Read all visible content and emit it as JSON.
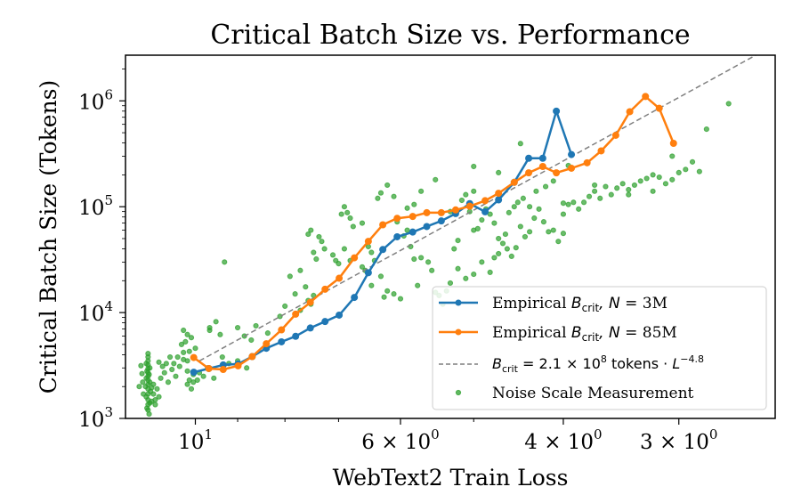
{
  "chart_data": {
    "type": "scatter",
    "title": "Critical Batch Size vs. Performance",
    "xlabel": "WebText2 Train Loss",
    "ylabel": "Critical Batch Size (Tokens)",
    "xscale": "log",
    "x_inverted": true,
    "yscale": "log",
    "xlim": [
      11.9,
      2.36
    ],
    "ylim": [
      1000,
      2700000
    ],
    "grid": false,
    "legend_position": "bottom-right",
    "x_ticks": [
      {
        "value": 10,
        "label_base": "10",
        "label_exp": "1",
        "label_mult": ""
      },
      {
        "value": 6,
        "label_base": "10",
        "label_exp": "0",
        "label_mult": "6 × "
      },
      {
        "value": 4,
        "label_base": "10",
        "label_exp": "0",
        "label_mult": "4 × "
      },
      {
        "value": 3,
        "label_base": "10",
        "label_exp": "0",
        "label_mult": "3 × "
      }
    ],
    "x_minor_ticks": [
      9,
      8,
      7,
      5
    ],
    "y_ticks": [
      {
        "value": 1000,
        "label_base": "10",
        "label_exp": "3"
      },
      {
        "value": 10000,
        "label_base": "10",
        "label_exp": "4"
      },
      {
        "value": 100000,
        "label_base": "10",
        "label_exp": "5"
      },
      {
        "value": 1000000,
        "label_base": "10",
        "label_exp": "6"
      }
    ],
    "series": [
      {
        "name": "Empirical B_crit, N = 3M",
        "legend": {
          "prefix": "Empirical ",
          "math_main": "B",
          "math_sub": "crit",
          "suffix_math": ", N",
          "suffix": " = 3M"
        },
        "kind": "line-marker",
        "color": "#1f77b4",
        "x": [
          10.04,
          9.67,
          9.33,
          8.99,
          8.68,
          8.38,
          8.07,
          7.79,
          7.51,
          7.24,
          6.99,
          6.73,
          6.5,
          6.27,
          6.05,
          5.82,
          5.62,
          5.42,
          5.23,
          5.05,
          4.86,
          4.7,
          4.52,
          4.36,
          4.21,
          4.07,
          3.92
        ],
        "y": [
          2730,
          2960,
          3200,
          3270,
          3840,
          4600,
          5290,
          5970,
          7150,
          8230,
          9460,
          13900,
          23800,
          39400,
          52000,
          57600,
          65000,
          73400,
          86100,
          107000,
          89500,
          116000,
          170000,
          287000,
          287000,
          800000,
          311000
        ]
      },
      {
        "name": "Empirical B_crit, N = 85M",
        "legend": {
          "prefix": "Empirical ",
          "math_main": "B",
          "math_sub": "crit",
          "suffix_math": ", N",
          "suffix": " = 85M"
        },
        "kind": "line-marker",
        "color": "#ff7f0e",
        "x": [
          10.04,
          9.67,
          9.33,
          8.99,
          8.68,
          8.38,
          8.07,
          7.79,
          7.51,
          7.24,
          6.99,
          6.73,
          6.5,
          6.27,
          6.05,
          5.82,
          5.62,
          5.42,
          5.23,
          5.05,
          4.86,
          4.7,
          4.52,
          4.36,
          4.21,
          4.07,
          3.92,
          3.77,
          3.64,
          3.51,
          3.39,
          3.26,
          3.15,
          3.04
        ],
        "y": [
          3760,
          2960,
          2900,
          3140,
          3840,
          5080,
          6860,
          9660,
          12500,
          16600,
          21100,
          32900,
          47100,
          67500,
          77700,
          80900,
          87800,
          87800,
          93300,
          101000,
          114000,
          134000,
          170000,
          209000,
          240000,
          209000,
          231000,
          260000,
          337000,
          473000,
          790000,
          1100000,
          850000,
          397000
        ]
      },
      {
        "name": "B_crit = 2.1 × 10^8 tokens · L^-4.8",
        "legend": {
          "math_main": "B",
          "math_sub": "crit",
          "text": " = 2.1 × 10",
          "exp1": "8",
          "text2": " tokens · ",
          "math_L": "L",
          "exp2": "−4.8"
        },
        "kind": "dashed-line",
        "color": "#7f7f7f",
        "coefficient": 210000000,
        "exponent": -4.8,
        "x_range": [
          9.9,
          2.45
        ]
      },
      {
        "name": "Noise Scale Measurement",
        "legend": {
          "text": "Noise Scale Measurement"
        },
        "kind": "scatter",
        "color": "#2ca02c",
        "points": [
          [
            11.25,
            1200
          ],
          [
            11.25,
            1350
          ],
          [
            11.25,
            1500
          ],
          [
            11.25,
            1700
          ],
          [
            11.25,
            1900
          ],
          [
            11.25,
            2100
          ],
          [
            11.25,
            2300
          ],
          [
            11.25,
            2500
          ],
          [
            11.25,
            2700
          ],
          [
            11.25,
            2950
          ],
          [
            11.25,
            3200
          ],
          [
            11.25,
            3500
          ],
          [
            11.25,
            3800
          ],
          [
            11.25,
            4100
          ],
          [
            11.22,
            1100
          ],
          [
            11.28,
            1250
          ],
          [
            11.2,
            1400
          ],
          [
            11.3,
            1600
          ],
          [
            11.18,
            1800
          ],
          [
            11.32,
            2000
          ],
          [
            11.2,
            2200
          ],
          [
            11.3,
            2400
          ],
          [
            11.22,
            2600
          ],
          [
            11.28,
            2800
          ],
          [
            11.2,
            3000
          ],
          [
            11.3,
            3300
          ],
          [
            11.15,
            1450
          ],
          [
            11.1,
            1700
          ],
          [
            11.05,
            1500
          ],
          [
            11.0,
            1900
          ],
          [
            11.1,
            2100
          ],
          [
            11.05,
            1350
          ],
          [
            10.95,
            1600
          ],
          [
            11.15,
            1950
          ],
          [
            11.45,
            3150
          ],
          [
            11.42,
            2650
          ],
          [
            11.4,
            2200
          ],
          [
            11.38,
            1700
          ],
          [
            11.5,
            2000
          ],
          [
            10.9,
            2400
          ],
          [
            10.8,
            2700
          ],
          [
            10.7,
            2200
          ],
          [
            10.6,
            2900
          ],
          [
            10.5,
            2500
          ],
          [
            10.4,
            3100
          ],
          [
            10.3,
            3600
          ],
          [
            10.2,
            2800
          ],
          [
            10.15,
            2300
          ],
          [
            10.1,
            1900
          ],
          [
            10.05,
            2600
          ],
          [
            10.95,
            3400
          ],
          [
            10.85,
            3100
          ],
          [
            10.75,
            3300
          ],
          [
            10.65,
            3800
          ],
          [
            10.55,
            3300
          ],
          [
            10.45,
            3800
          ],
          [
            10.3,
            4200
          ],
          [
            10.2,
            3500
          ],
          [
            10.35,
            5000
          ],
          [
            10.25,
            5300
          ],
          [
            10.2,
            6200
          ],
          [
            10.3,
            6800
          ],
          [
            10.1,
            5800
          ],
          [
            10.15,
            4300
          ],
          [
            10.0,
            4600
          ],
          [
            10.2,
            2100
          ],
          [
            10.05,
            2200
          ],
          [
            9.95,
            2300
          ],
          [
            9.9,
            2700
          ],
          [
            9.8,
            2500
          ],
          [
            9.55,
            2400
          ],
          [
            9.7,
            3000
          ],
          [
            9.65,
            7200
          ],
          [
            9.5,
            8200
          ],
          [
            9.35,
            3800
          ],
          [
            9.2,
            3300
          ],
          [
            9.0,
            3500
          ],
          [
            8.8,
            3000
          ],
          [
            8.7,
            5500
          ],
          [
            9.3,
            30000
          ],
          [
            9.65,
            6800
          ],
          [
            9.4,
            6200
          ],
          [
            9.0,
            7200
          ],
          [
            8.85,
            6000
          ],
          [
            8.6,
            7500
          ],
          [
            8.35,
            6400
          ],
          [
            8.1,
            9200
          ],
          [
            8.0,
            11500
          ],
          [
            7.8,
            15000
          ],
          [
            7.7,
            10500
          ],
          [
            7.55,
            13000
          ],
          [
            7.5,
            12000
          ],
          [
            7.45,
            14500
          ],
          [
            7.9,
            22000
          ],
          [
            7.7,
            25000
          ],
          [
            7.6,
            17500
          ],
          [
            7.4,
            32000
          ],
          [
            7.3,
            47000
          ],
          [
            7.25,
            40000
          ],
          [
            7.35,
            52000
          ],
          [
            7.55,
            55000
          ],
          [
            7.5,
            60000
          ],
          [
            7.45,
            37000
          ],
          [
            7.1,
            35000
          ],
          [
            7.05,
            31000
          ],
          [
            7.0,
            29000
          ],
          [
            6.95,
            85000
          ],
          [
            6.9,
            100000
          ],
          [
            6.85,
            88000
          ],
          [
            6.8,
            78000
          ],
          [
            6.75,
            65000
          ],
          [
            6.6,
            70000
          ],
          [
            6.5,
            42000
          ],
          [
            6.45,
            18000
          ],
          [
            6.3,
            22000
          ],
          [
            6.25,
            14000
          ],
          [
            6.2,
            16000
          ],
          [
            6.1,
            15000
          ],
          [
            6.0,
            13500
          ],
          [
            6.05,
            72000
          ],
          [
            5.95,
            53000
          ],
          [
            5.9,
            60000
          ],
          [
            5.85,
            42000
          ],
          [
            5.8,
            32000
          ],
          [
            5.7,
            33000
          ],
          [
            5.75,
            18000
          ],
          [
            5.6,
            30000
          ],
          [
            5.55,
            25000
          ],
          [
            5.5,
            15500
          ],
          [
            5.45,
            14500
          ],
          [
            5.4,
            12000
          ],
          [
            5.35,
            16000
          ],
          [
            5.3,
            19000
          ],
          [
            5.25,
            40000
          ],
          [
            5.2,
            48000
          ],
          [
            5.1,
            130000
          ],
          [
            5.15,
            115000
          ],
          [
            5.05,
            90000
          ],
          [
            5.0,
            60000
          ],
          [
            6.35,
            120000
          ],
          [
            6.3,
            135000
          ],
          [
            6.2,
            160000
          ],
          [
            6.1,
            125000
          ],
          [
            5.9,
            97000
          ],
          [
            5.8,
            105000
          ],
          [
            5.7,
            140000
          ],
          [
            6.9,
            40000
          ],
          [
            6.8,
            31000
          ],
          [
            6.6,
            27000
          ],
          [
            6.55,
            25000
          ],
          [
            6.45,
            37000
          ],
          [
            6.4,
            31000
          ],
          [
            4.95,
            62000
          ],
          [
            4.9,
            75000
          ],
          [
            4.85,
            95000
          ],
          [
            4.8,
            85000
          ],
          [
            4.75,
            70000
          ],
          [
            4.7,
            50000
          ],
          [
            4.65,
            45000
          ],
          [
            4.6,
            40000
          ],
          [
            4.55,
            34000
          ],
          [
            4.5,
            41000
          ],
          [
            4.45,
            65000
          ],
          [
            4.4,
            52000
          ],
          [
            4.35,
            58000
          ],
          [
            4.3,
            78000
          ],
          [
            4.25,
            95000
          ],
          [
            4.2,
            72000
          ],
          [
            4.15,
            58000
          ],
          [
            4.1,
            60000
          ],
          [
            4.05,
            47000
          ],
          [
            4.0,
            56000
          ],
          [
            4.0,
            85000
          ],
          [
            5.2,
            26000
          ],
          [
            5.1,
            21000
          ],
          [
            5.0,
            23000
          ],
          [
            4.9,
            30000
          ],
          [
            4.8,
            24000
          ],
          [
            4.75,
            33000
          ],
          [
            4.7,
            36000
          ],
          [
            4.62,
            55000
          ],
          [
            4.58,
            88000
          ],
          [
            4.52,
            100000
          ],
          [
            4.48,
            110000
          ],
          [
            4.42,
            120000
          ],
          [
            4.35,
            100000
          ],
          [
            4.28,
            140000
          ],
          [
            4.18,
            155000
          ],
          [
            4.1,
            175000
          ],
          [
            4.0,
            108000
          ],
          [
            3.95,
            105000
          ],
          [
            3.9,
            110000
          ],
          [
            4.45,
            395000
          ],
          [
            4.7,
            210000
          ],
          [
            5.5,
            180000
          ],
          [
            5.0,
            240000
          ],
          [
            3.95,
            245000
          ],
          [
            5.3,
            90000
          ],
          [
            5.0,
            140000
          ],
          [
            3.85,
            95000
          ],
          [
            3.8,
            110000
          ],
          [
            3.75,
            125000
          ],
          [
            3.7,
            140000
          ],
          [
            3.65,
            120000
          ],
          [
            3.6,
            155000
          ],
          [
            3.55,
            130000
          ],
          [
            3.5,
            150000
          ],
          [
            3.45,
            165000
          ],
          [
            3.4,
            145000
          ],
          [
            3.35,
            160000
          ],
          [
            3.3,
            175000
          ],
          [
            3.25,
            185000
          ],
          [
            3.2,
            200000
          ],
          [
            3.15,
            190000
          ],
          [
            3.1,
            165000
          ],
          [
            3.05,
            180000
          ],
          [
            3.0,
            210000
          ],
          [
            2.95,
            225000
          ],
          [
            2.9,
            265000
          ],
          [
            2.85,
            215000
          ],
          [
            3.05,
            300000
          ],
          [
            2.8,
            540000
          ],
          [
            2.65,
            940000
          ],
          [
            3.2,
            140000
          ],
          [
            3.4,
            130000
          ],
          [
            3.7,
            160000
          ]
        ]
      }
    ]
  }
}
